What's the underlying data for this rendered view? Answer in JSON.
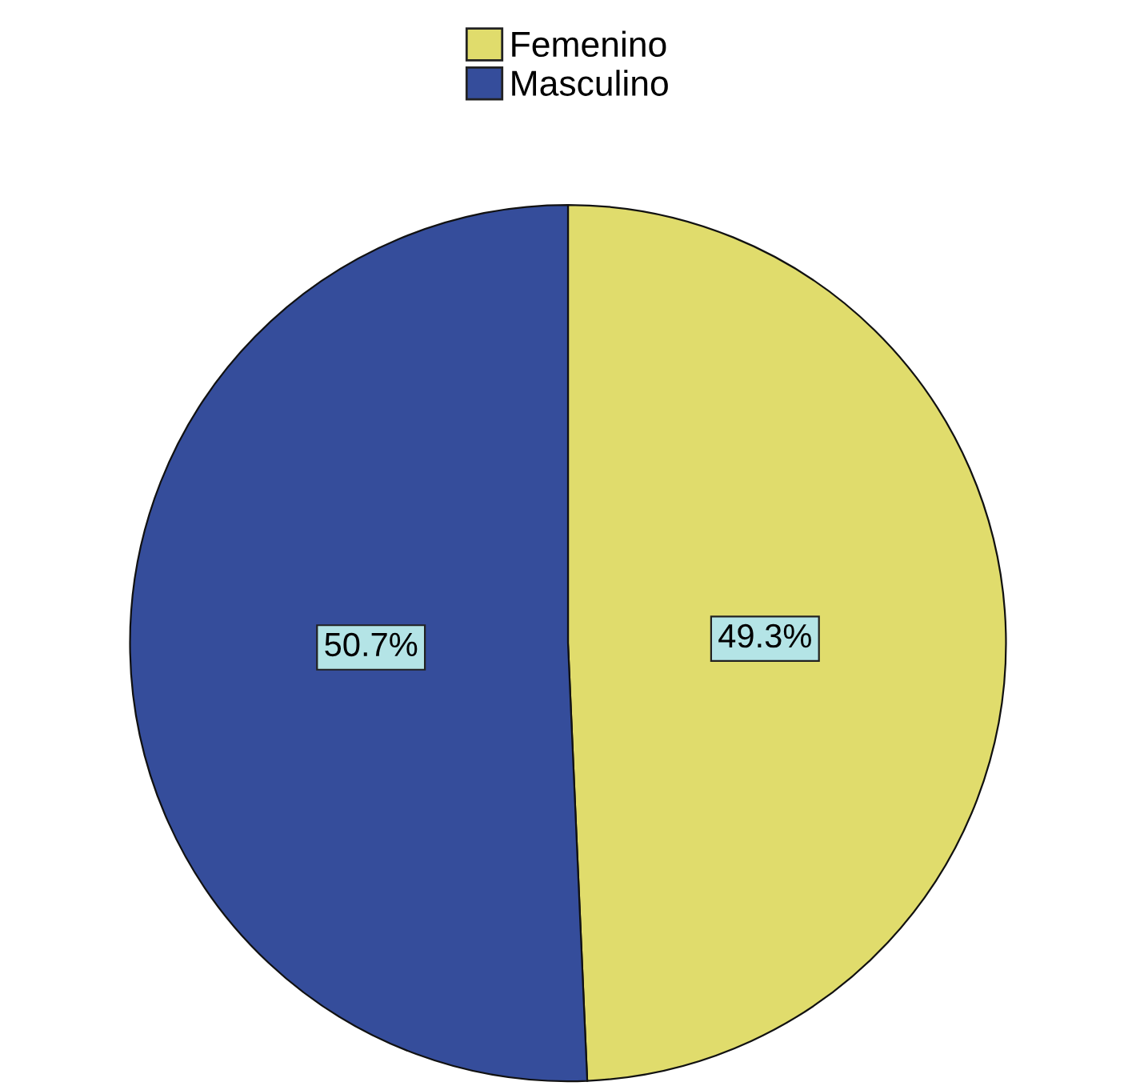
{
  "chart_data": {
    "type": "pie",
    "categories": [
      "Femenino",
      "Masculino"
    ],
    "values": [
      49.3,
      50.7
    ],
    "colors": [
      "#e0dc6c",
      "#354d9b"
    ],
    "value_labels": [
      "49.3%",
      "50.7%"
    ],
    "legend": "top"
  }
}
